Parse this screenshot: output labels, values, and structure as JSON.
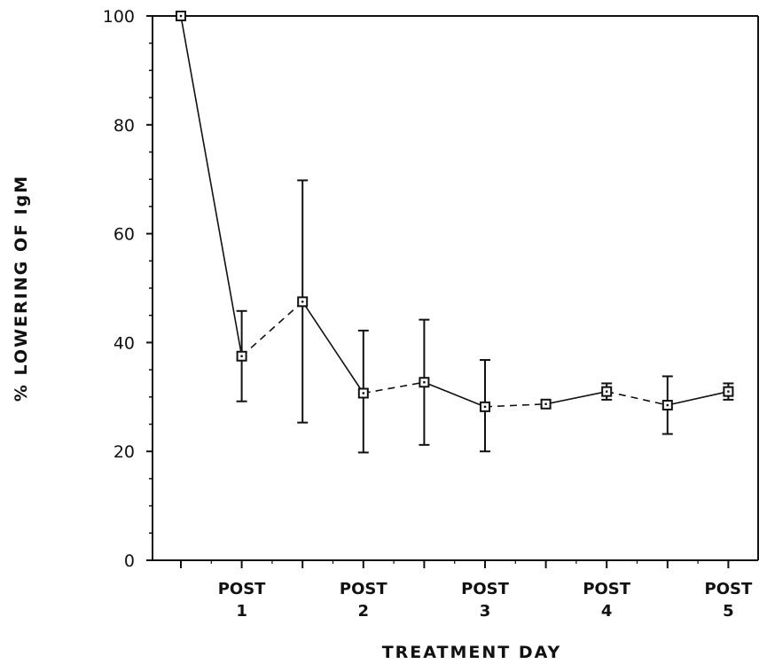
{
  "chart_data": {
    "type": "line",
    "xlabel": "TREATMENT DAY",
    "ylabel": "% LOWERING OF IgM",
    "ylim": [
      0,
      100
    ],
    "yticks": [
      0,
      20,
      40,
      60,
      80,
      100
    ],
    "grid": false,
    "x_positions": [
      0,
      1,
      2,
      3,
      4,
      5,
      6,
      7,
      8,
      9
    ],
    "x_tick_labels": [
      {
        "position": 1,
        "line1": "POST",
        "line2": "1"
      },
      {
        "position": 3,
        "line1": "POST",
        "line2": "2"
      },
      {
        "position": 5,
        "line1": "POST",
        "line2": "3"
      },
      {
        "position": 7,
        "line1": "POST",
        "line2": "4"
      },
      {
        "position": 9,
        "line1": "POST",
        "line2": "5"
      }
    ],
    "series": [
      {
        "values": [
          100,
          37.5,
          47.5,
          30.7,
          32.7,
          28.2,
          28.7,
          31.0,
          28.5,
          31.0
        ],
        "error_low": [
          100,
          29.2,
          25.3,
          19.8,
          21.2,
          20.0,
          28.2,
          29.5,
          23.2,
          29.5
        ],
        "error_high": [
          100,
          45.8,
          69.8,
          42.2,
          44.2,
          36.8,
          29.3,
          32.5,
          33.8,
          32.5
        ],
        "segment_styles": [
          "solid",
          "dashed",
          "solid",
          "dashed",
          "solid",
          "dashed",
          "solid",
          "dashed",
          "solid"
        ]
      }
    ]
  }
}
